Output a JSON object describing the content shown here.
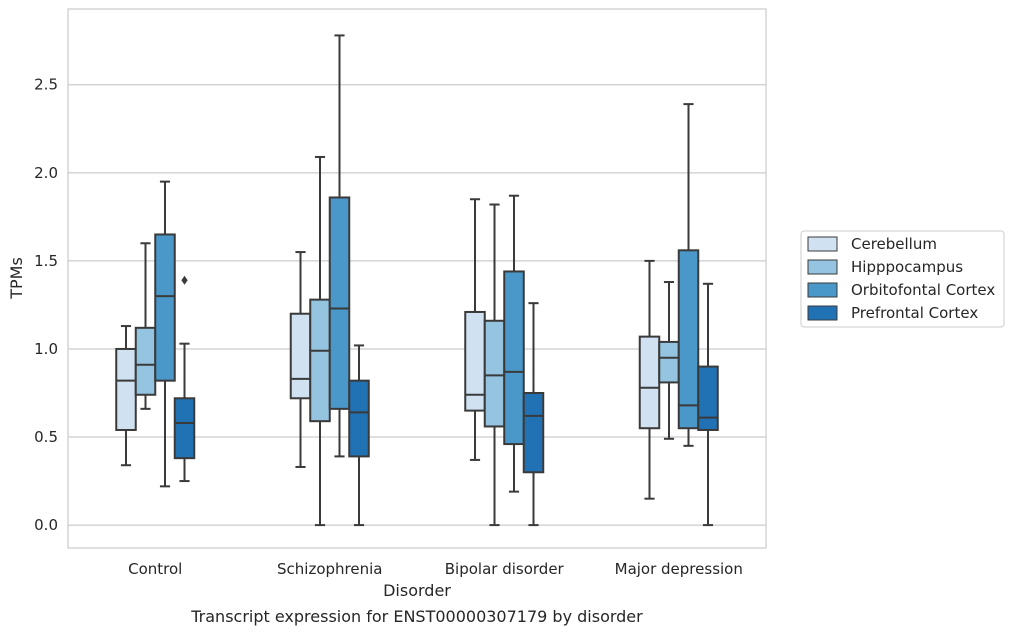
{
  "chart_data": {
    "type": "box",
    "title": "",
    "caption": "Transcript expression for ENST00000307179 by disorder",
    "xlabel": "Disorder",
    "ylabel": "TPMs",
    "ylim": [
      -0.13,
      2.93
    ],
    "yticks": [
      0.0,
      0.5,
      1.0,
      1.5,
      2.0,
      2.5
    ],
    "ytick_labels": [
      "0.0",
      "0.5",
      "1.0",
      "1.5",
      "2.0",
      "2.5"
    ],
    "grid": "horizontal",
    "legend_position": "right",
    "categories": [
      "Control",
      "Schizophrenia",
      "Bipolar disorder",
      "Major depression"
    ],
    "series": [
      {
        "name": "Cerebellum",
        "color": "#d0e1f2",
        "boxes": [
          {
            "whislo": 0.34,
            "q1": 0.54,
            "med": 0.82,
            "q3": 1.0,
            "whishi": 1.13,
            "fliers": []
          },
          {
            "whislo": 0.33,
            "q1": 0.72,
            "med": 0.83,
            "q3": 1.2,
            "whishi": 1.55,
            "fliers": []
          },
          {
            "whislo": 0.37,
            "q1": 0.65,
            "med": 0.74,
            "q3": 1.21,
            "whishi": 1.85,
            "fliers": []
          },
          {
            "whislo": 0.15,
            "q1": 0.55,
            "med": 0.78,
            "q3": 1.07,
            "whishi": 1.5,
            "fliers": []
          }
        ]
      },
      {
        "name": "Hipppocampus",
        "color": "#94c4df",
        "boxes": [
          {
            "whislo": 0.66,
            "q1": 0.74,
            "med": 0.91,
            "q3": 1.12,
            "whishi": 1.6,
            "fliers": []
          },
          {
            "whislo": 0.0,
            "q1": 0.59,
            "med": 0.99,
            "q3": 1.28,
            "whishi": 2.09,
            "fliers": []
          },
          {
            "whislo": 0.0,
            "q1": 0.56,
            "med": 0.85,
            "q3": 1.16,
            "whishi": 1.82,
            "fliers": []
          },
          {
            "whislo": 0.49,
            "q1": 0.81,
            "med": 0.95,
            "q3": 1.04,
            "whishi": 1.38,
            "fliers": []
          }
        ]
      },
      {
        "name": "Orbitofontal Cortex",
        "color": "#4a98c9",
        "boxes": [
          {
            "whislo": 0.22,
            "q1": 0.82,
            "med": 1.3,
            "q3": 1.65,
            "whishi": 1.95,
            "fliers": []
          },
          {
            "whislo": 0.39,
            "q1": 0.66,
            "med": 1.23,
            "q3": 1.86,
            "whishi": 2.78,
            "fliers": []
          },
          {
            "whislo": 0.19,
            "q1": 0.46,
            "med": 0.87,
            "q3": 1.44,
            "whishi": 1.87,
            "fliers": []
          },
          {
            "whislo": 0.45,
            "q1": 0.55,
            "med": 0.68,
            "q3": 1.56,
            "whishi": 2.39,
            "fliers": []
          }
        ]
      },
      {
        "name": "Prefrontal Cortex",
        "color": "#2171b5",
        "boxes": [
          {
            "whislo": 0.25,
            "q1": 0.38,
            "med": 0.58,
            "q3": 0.72,
            "whishi": 1.03,
            "fliers": [
              1.39
            ]
          },
          {
            "whislo": 0.0,
            "q1": 0.39,
            "med": 0.64,
            "q3": 0.82,
            "whishi": 1.02,
            "fliers": []
          },
          {
            "whislo": 0.0,
            "q1": 0.3,
            "med": 0.62,
            "q3": 0.75,
            "whishi": 1.26,
            "fliers": []
          },
          {
            "whislo": 0.0,
            "q1": 0.54,
            "med": 0.61,
            "q3": 0.9,
            "whishi": 1.37,
            "fliers": []
          }
        ]
      }
    ]
  }
}
